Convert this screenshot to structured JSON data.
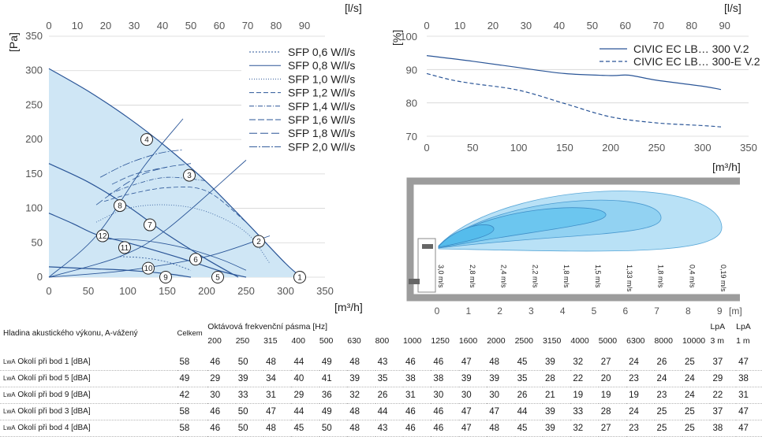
{
  "chart_data": [
    {
      "type": "line",
      "id": "pressure-flow",
      "ylabel": "[Pa]",
      "xlabel": "[m³/h]",
      "x2label": "[l/s]",
      "xlim": [
        0,
        350
      ],
      "ylim": [
        0,
        350
      ],
      "x_ticks": [
        0,
        50,
        100,
        150,
        200,
        250,
        300,
        350
      ],
      "y_ticks": [
        0,
        50,
        100,
        150,
        200,
        250,
        300,
        350
      ],
      "x2_ticks": [
        0,
        10,
        20,
        30,
        40,
        50,
        60,
        70,
        80,
        90
      ],
      "legend": {
        "position": "top-right",
        "entries": [
          {
            "name": "SFP 0,6 W/l/s",
            "dash": "2,2"
          },
          {
            "name": "SFP 0,8 W/l/s",
            "dash": ""
          },
          {
            "name": "SFP 1,0 W/l/s",
            "dash": "1,2"
          },
          {
            "name": "SFP 1,2 W/l/s",
            "dash": "6,3"
          },
          {
            "name": "SFP 1,4 W/l/s",
            "dash": "6,2,1,2"
          },
          {
            "name": "SFP 1,6 W/l/s",
            "dash": "8,3"
          },
          {
            "name": "SFP 1,8 W/l/s",
            "dash": "10,4"
          },
          {
            "name": "SFP 2,0 W/l/s",
            "dash": "10,2,2,2"
          }
        ]
      },
      "fan_curves": [
        {
          "x": [
            0,
            50,
            100,
            150,
            200,
            250,
            300,
            320
          ],
          "y": [
            303,
            270,
            232,
            188,
            138,
            80,
            20,
            0
          ]
        },
        {
          "x": [
            0,
            50,
            100,
            150,
            200,
            240
          ],
          "y": [
            165,
            138,
            103,
            62,
            26,
            0
          ]
        },
        {
          "x": [
            0,
            30,
            60,
            100,
            140,
            180,
            220,
            250
          ],
          "y": [
            93,
            78,
            62,
            50,
            37,
            23,
            8,
            0
          ]
        },
        {
          "x": [
            0,
            60,
            100,
            150,
            180
          ],
          "y": [
            15,
            12,
            10,
            5,
            0
          ]
        }
      ],
      "sfp_curves": [
        {
          "x": [
            90,
            120,
            150,
            180
          ],
          "y": [
            30,
            28,
            22,
            10
          ]
        },
        {
          "x": [
            65,
            100,
            140,
            180,
            220,
            250
          ],
          "y": [
            55,
            55,
            50,
            40,
            25,
            10
          ]
        },
        {
          "x": [
            60,
            100,
            150,
            200,
            250,
            280
          ],
          "y": [
            80,
            100,
            105,
            95,
            65,
            20
          ]
        },
        {
          "x": [
            70,
            100,
            150,
            200,
            250
          ],
          "y": [
            110,
            120,
            130,
            125,
            80
          ]
        },
        {
          "x": [
            75,
            110,
            150,
            200
          ],
          "y": [
            120,
            135,
            145,
            140
          ]
        },
        {
          "x": [
            80,
            110,
            150,
            180
          ],
          "y": [
            135,
            150,
            160,
            165
          ]
        },
        {
          "x": [
            60,
            90,
            120,
            150
          ],
          "y": [
            105,
            130,
            150,
            160
          ]
        },
        {
          "x": [
            65,
            100,
            140,
            170
          ],
          "y": [
            145,
            165,
            180,
            185
          ]
        }
      ],
      "system_curves": [
        {
          "x": [
            0,
            90,
            150,
            250
          ],
          "y": [
            0,
            30,
            70,
            170
          ]
        },
        {
          "x": [
            0,
            60,
            120,
            170
          ],
          "y": [
            0,
            60,
            160,
            230
          ]
        },
        {
          "x": [
            0,
            100,
            200,
            280
          ],
          "y": [
            0,
            10,
            30,
            60
          ]
        }
      ],
      "points": [
        {
          "label": "1",
          "x": 318,
          "y": 0
        },
        {
          "label": "2",
          "x": 266,
          "y": 52
        },
        {
          "label": "3",
          "x": 178,
          "y": 148
        },
        {
          "label": "4",
          "x": 124,
          "y": 200
        },
        {
          "label": "5",
          "x": 214,
          "y": 0
        },
        {
          "label": "6",
          "x": 186,
          "y": 26
        },
        {
          "label": "7",
          "x": 128,
          "y": 76
        },
        {
          "label": "8",
          "x": 90,
          "y": 104
        },
        {
          "label": "9",
          "x": 148,
          "y": 0
        },
        {
          "label": "10",
          "x": 126,
          "y": 13
        },
        {
          "label": "11",
          "x": 96,
          "y": 43
        },
        {
          "label": "12",
          "x": 68,
          "y": 60
        }
      ]
    },
    {
      "type": "line",
      "id": "efficiency",
      "ylabel": "[%]",
      "xlabel": "[m³/h]",
      "x2label": "[l/s]",
      "xlim": [
        0,
        350
      ],
      "ylim": [
        70,
        100
      ],
      "x_ticks": [
        0,
        50,
        100,
        150,
        200,
        250,
        300,
        350
      ],
      "y_ticks": [
        70,
        80,
        90,
        100
      ],
      "x2_ticks": [
        0,
        10,
        20,
        30,
        40,
        50,
        60,
        70,
        80,
        90
      ],
      "legend": {
        "position": "top-right"
      },
      "series": [
        {
          "name": "CIVIC EC LB… 300 V.2",
          "dash": "",
          "x": [
            0,
            50,
            100,
            150,
            200,
            220,
            250,
            300,
            320
          ],
          "y": [
            94.2,
            92.5,
            90.6,
            88.8,
            88.2,
            88.3,
            86.8,
            85.0,
            84.0
          ]
        },
        {
          "name": "CIVIC EC LB… 300-E V.2",
          "dash": "5,3",
          "x": [
            0,
            25,
            50,
            100,
            150,
            200,
            250,
            300,
            320
          ],
          "y": [
            88.8,
            87.0,
            85.8,
            83.8,
            79.8,
            75.8,
            74.0,
            73.2,
            72.8
          ]
        }
      ]
    },
    {
      "type": "other",
      "id": "throw-diagram",
      "x_ticks": [
        0,
        1,
        2,
        3,
        4,
        5,
        6,
        7,
        8,
        9
      ],
      "x_unit": "[m]",
      "velocity_labels": [
        "3,0 m/s",
        "2,8 m/s",
        "2,4 m/s",
        "2,2 m/s",
        "1,8 m/s",
        "1,5 m/s",
        "1,33 m/s",
        "1,8 m/s",
        "0,4 m/s",
        "0,19 m/s"
      ]
    }
  ],
  "table": {
    "row_header_title": "Hladina akustického výkonu, A-vážený",
    "total_header": "Celkem",
    "band_header": "Oktávová frekvenční pásma [Hz]",
    "bands": [
      "200",
      "250",
      "315",
      "400",
      "500",
      "630",
      "800",
      "1000",
      "1250",
      "1600",
      "2000",
      "2500",
      "3150",
      "4000",
      "5000",
      "6300",
      "8000",
      "10000"
    ],
    "lpa3": [
      "LpA",
      "3 m"
    ],
    "lpa1": [
      "LpA",
      "1 m"
    ],
    "rows": [
      {
        "prefix": "LwA",
        "label": " Okolí při bod 1 [dBA]",
        "total": "58",
        "values": [
          "46",
          "50",
          "48",
          "44",
          "49",
          "48",
          "43",
          "46",
          "46",
          "47",
          "48",
          "45",
          "39",
          "32",
          "27",
          "24",
          "26",
          "25"
        ],
        "lpa3": "37",
        "lpa1": "47"
      },
      {
        "prefix": "LwA",
        "label": " Okolí při bod 5 [dBA]",
        "total": "49",
        "values": [
          "29",
          "39",
          "34",
          "40",
          "41",
          "39",
          "35",
          "38",
          "38",
          "39",
          "39",
          "35",
          "28",
          "22",
          "20",
          "23",
          "24",
          "24"
        ],
        "lpa3": "29",
        "lpa1": "38"
      },
      {
        "prefix": "LwA",
        "label": " Okolí při bod 9 [dBA]",
        "total": "42",
        "values": [
          "30",
          "33",
          "31",
          "29",
          "36",
          "32",
          "26",
          "31",
          "30",
          "30",
          "30",
          "26",
          "21",
          "19",
          "19",
          "19",
          "23",
          "24"
        ],
        "lpa3": "22",
        "lpa1": "31"
      },
      {
        "prefix": "LwA",
        "label": " Okolí při bod 3 [dBA]",
        "total": "58",
        "values": [
          "46",
          "50",
          "47",
          "44",
          "49",
          "48",
          "44",
          "46",
          "46",
          "47",
          "47",
          "44",
          "39",
          "33",
          "28",
          "24",
          "25",
          "25"
        ],
        "lpa3": "37",
        "lpa1": "47"
      },
      {
        "prefix": "LwA",
        "label": " Okolí při bod 4 [dBA]",
        "total": "58",
        "values": [
          "46",
          "50",
          "48",
          "45",
          "50",
          "48",
          "43",
          "46",
          "46",
          "47",
          "48",
          "45",
          "39",
          "32",
          "27",
          "23",
          "25",
          "25"
        ],
        "lpa3": "38",
        "lpa1": "47"
      }
    ]
  },
  "colors": {
    "curve": "#2a5597",
    "fill": "#cfe6f5",
    "grid": "#d4d4d4",
    "throw_outer": "#b9e1f6",
    "throw_mid": "#92d2f2",
    "throw_inner": "#6cc6ef",
    "wall": "#9c9c9c"
  }
}
